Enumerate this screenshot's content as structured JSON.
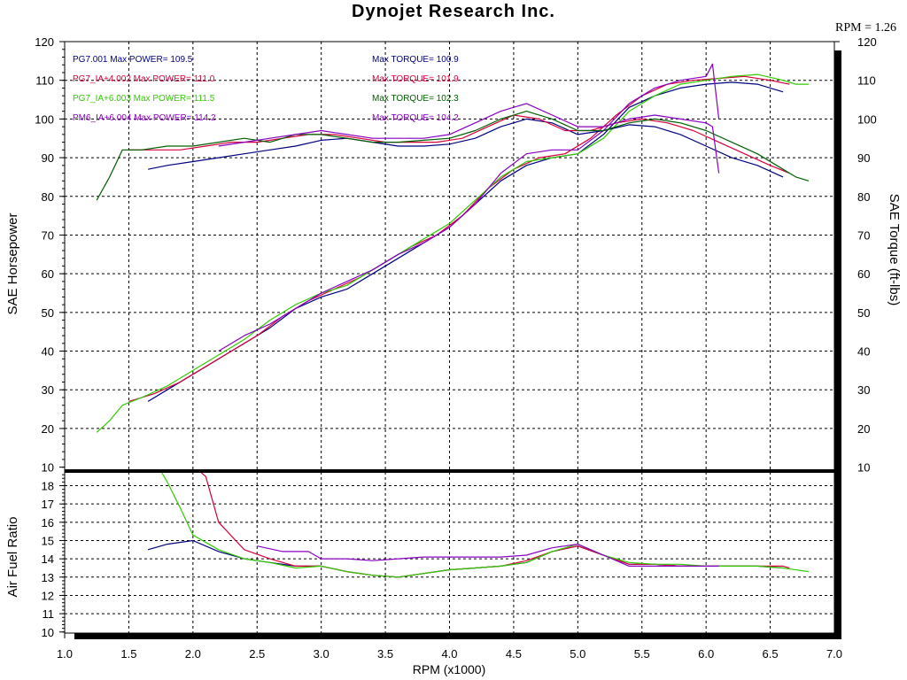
{
  "title": "Dynojet Research Inc.",
  "rpm_factor": "RPM = 1.26",
  "colors": {
    "navy": "#000080",
    "red": "#d8003c",
    "green": "#30cc00",
    "purple": "#8800c0",
    "darkgreen": "#006000",
    "axis": "#000000",
    "grid": "#000000"
  },
  "legend": [
    {
      "run": "PG7.001",
      "power_label": "Max POWER= 109.5",
      "torque_label": "Max TORQUE= 100.9",
      "color": "#000080",
      "torque_color": "#000080"
    },
    {
      "run": "PG7_IA+4.002",
      "power_label": "Max POWER= 111.0",
      "torque_label": "Max TORQUE= 101.9",
      "color": "#d8003c",
      "torque_color": "#d8003c"
    },
    {
      "run": "PG7_IA+6.003",
      "power_label": "Max POWER= 111.5",
      "torque_label": "Max TORQUE= 102.3",
      "color": "#30cc00",
      "torque_color": "#006000"
    },
    {
      "run": "PM6_IA+6.004",
      "power_label": "Max POWER= 114.2",
      "torque_label": "Max TORQUE= 104.2",
      "color": "#8800c0",
      "torque_color": "#8800c0"
    }
  ],
  "chart_data": [
    {
      "type": "line",
      "ylabel": "SAE Horsepower",
      "y2label": "SAE Torque (ft-lbs)",
      "ylim": [
        10,
        120
      ],
      "y_ticks": [
        "10",
        "20",
        "30",
        "40",
        "50",
        "60",
        "70",
        "80",
        "90",
        "100",
        "110",
        "120"
      ],
      "y2_ticks": [
        "10",
        "20",
        "30",
        "40",
        "50",
        "60",
        "70",
        "80",
        "90",
        "100",
        "110",
        "120"
      ],
      "xlim": [
        1.0,
        7.0
      ],
      "grid": true,
      "legend_position": "top-left",
      "series": [
        {
          "name": "PG7.001",
          "measure": "horsepower",
          "color": "#000080",
          "x": [
            1.65,
            1.8,
            2.0,
            2.2,
            2.4,
            2.6,
            2.8,
            3.0,
            3.2,
            3.4,
            3.6,
            3.8,
            4.0,
            4.2,
            4.4,
            4.6,
            4.8,
            5.0,
            5.2,
            5.4,
            5.6,
            5.8,
            6.0,
            6.2,
            6.4,
            6.6
          ],
          "y": [
            27,
            30,
            34,
            38,
            42,
            46,
            51,
            54,
            56,
            60,
            64,
            68,
            72,
            78,
            84,
            88,
            90,
            91,
            96,
            103,
            106,
            108,
            109,
            109.5,
            109,
            107
          ]
        },
        {
          "name": "PG7_IA+4.002",
          "measure": "horsepower",
          "color": "#d8003c",
          "x": [
            1.5,
            1.7,
            1.9,
            2.1,
            2.3,
            2.5,
            2.7,
            2.9,
            3.1,
            3.3,
            3.5,
            3.7,
            3.9,
            4.1,
            4.3,
            4.5,
            4.7,
            4.9,
            5.1,
            5.3,
            5.5,
            5.7,
            5.9,
            6.1,
            6.3,
            6.5,
            6.65
          ],
          "y": [
            27,
            29,
            32,
            36,
            40,
            44,
            49,
            53,
            56,
            59,
            63,
            67,
            70,
            75,
            82,
            87,
            90,
            91,
            95,
            101,
            106,
            109,
            110,
            110.5,
            111,
            110,
            109
          ]
        },
        {
          "name": "PG7_IA+6.003",
          "measure": "horsepower",
          "color": "#30cc00",
          "x": [
            1.25,
            1.35,
            1.45,
            1.6,
            1.8,
            2.0,
            2.2,
            2.4,
            2.6,
            2.8,
            3.0,
            3.2,
            3.4,
            3.6,
            3.8,
            4.0,
            4.2,
            4.4,
            4.6,
            4.8,
            5.0,
            5.2,
            5.4,
            5.6,
            5.8,
            6.0,
            6.2,
            6.4,
            6.6,
            6.7,
            6.8
          ],
          "y": [
            19,
            22,
            26,
            28,
            31,
            35,
            39,
            43,
            48,
            52,
            55,
            57,
            61,
            65,
            69,
            73,
            79,
            85,
            89,
            90,
            91,
            95,
            102,
            106,
            109,
            110,
            111,
            111.5,
            110,
            109,
            109
          ]
        },
        {
          "name": "PM6_IA+6.004",
          "measure": "horsepower",
          "color": "#8800c0",
          "x": [
            2.2,
            2.4,
            2.6,
            2.8,
            3.0,
            3.2,
            3.4,
            3.6,
            3.8,
            4.0,
            4.2,
            4.4,
            4.6,
            4.8,
            5.0,
            5.2,
            5.4,
            5.6,
            5.8,
            6.0,
            6.05,
            6.1
          ],
          "y": [
            40,
            44,
            47,
            51,
            55,
            58,
            61,
            65,
            68,
            72,
            78,
            86,
            91,
            92,
            92,
            97,
            104,
            108,
            110,
            111,
            114.2,
            100
          ]
        },
        {
          "name": "PG7.001",
          "measure": "torque",
          "color": "#000080",
          "x": [
            1.65,
            1.8,
            2.0,
            2.2,
            2.4,
            2.6,
            2.8,
            3.0,
            3.2,
            3.4,
            3.6,
            3.8,
            4.0,
            4.2,
            4.4,
            4.6,
            4.8,
            5.0,
            5.2,
            5.4,
            5.6,
            5.8,
            6.0,
            6.2,
            6.4,
            6.6
          ],
          "y": [
            87,
            88,
            89,
            90,
            91,
            92,
            93,
            94.5,
            95,
            94,
            93,
            93,
            93.5,
            95,
            98,
            100,
            99,
            96,
            97,
            98.5,
            98,
            96,
            93,
            90,
            88,
            85
          ]
        },
        {
          "name": "PG7_IA+4.002",
          "measure": "torque",
          "color": "#d8003c",
          "x": [
            1.5,
            1.7,
            1.9,
            2.1,
            2.3,
            2.5,
            2.7,
            2.9,
            3.1,
            3.3,
            3.5,
            3.7,
            3.9,
            4.1,
            4.3,
            4.5,
            4.7,
            4.9,
            5.1,
            5.3,
            5.5,
            5.7,
            5.9,
            6.1,
            6.3,
            6.5,
            6.65
          ],
          "y": [
            92,
            92,
            92,
            93,
            94,
            94,
            95,
            96,
            96,
            95,
            94,
            94,
            94,
            95,
            98,
            101,
            100,
            97,
            97,
            99,
            100,
            99,
            97,
            94,
            91,
            88,
            86
          ]
        },
        {
          "name": "PG7_IA+6.003",
          "measure": "torque",
          "color": "#006000",
          "x": [
            1.25,
            1.35,
            1.45,
            1.6,
            1.8,
            2.0,
            2.2,
            2.4,
            2.6,
            2.8,
            3.0,
            3.2,
            3.4,
            3.6,
            3.8,
            4.0,
            4.2,
            4.4,
            4.6,
            4.8,
            5.0,
            5.2,
            5.4,
            5.6,
            5.8,
            6.0,
            6.2,
            6.4,
            6.6,
            6.7,
            6.8
          ],
          "y": [
            79,
            85,
            92,
            92,
            93,
            93,
            94,
            95,
            94,
            96,
            96,
            95,
            94,
            94,
            94.5,
            95,
            97,
            100,
            102,
            100,
            97,
            97,
            99,
            100,
            99,
            97,
            94,
            91,
            87,
            85,
            84
          ]
        },
        {
          "name": "PM6_IA+6.004",
          "measure": "torque",
          "color": "#8800c0",
          "x": [
            2.2,
            2.4,
            2.6,
            2.8,
            3.0,
            3.2,
            3.4,
            3.6,
            3.8,
            4.0,
            4.2,
            4.4,
            4.6,
            4.8,
            5.0,
            5.2,
            5.4,
            5.6,
            5.8,
            6.0,
            6.05,
            6.1
          ],
          "y": [
            93,
            94,
            95,
            96,
            97,
            96,
            95,
            95,
            95,
            96,
            99,
            102,
            104,
            101,
            98,
            98,
            100,
            101,
            100,
            99,
            98,
            86
          ]
        }
      ]
    },
    {
      "type": "line",
      "ylabel": "Air Fuel Ratio",
      "xlabel": "RPM (x1000)",
      "ylim": [
        10,
        18.8
      ],
      "y_ticks": [
        "10",
        "11",
        "12",
        "13",
        "14",
        "15",
        "16",
        "17",
        "18"
      ],
      "x_ticks": [
        "1.0",
        "1.5",
        "2.0",
        "2.5",
        "3.0",
        "3.5",
        "4.0",
        "4.5",
        "5.0",
        "5.5",
        "6.0",
        "6.5",
        "7.0"
      ],
      "xlim": [
        1.0,
        7.0
      ],
      "grid": true,
      "series": [
        {
          "name": "PG7.001",
          "color": "#000080",
          "x": [
            1.65,
            1.8,
            2.0,
            2.2,
            2.4,
            2.6,
            2.8,
            3.0,
            3.2,
            3.4,
            3.6,
            3.8,
            4.0,
            4.2,
            4.4,
            4.6,
            4.8,
            5.0,
            5.2,
            5.4,
            5.6,
            5.8,
            6.0,
            6.2,
            6.4,
            6.6
          ],
          "y": [
            14.5,
            14.8,
            15.0,
            14.4,
            14.0,
            13.8,
            13.6,
            13.6,
            13.3,
            13.1,
            13.0,
            13.2,
            13.4,
            13.5,
            13.6,
            13.8,
            14.4,
            14.7,
            14.2,
            13.7,
            13.7,
            13.6,
            13.6,
            13.6,
            13.6,
            13.5
          ]
        },
        {
          "name": "PG7_IA+4.002",
          "color": "#d8003c",
          "x": [
            1.3,
            2.05,
            2.1,
            2.2,
            2.4,
            2.6,
            2.8,
            3.0,
            3.2,
            3.4,
            3.6,
            3.8,
            4.0,
            4.2,
            4.4,
            4.6,
            4.8,
            5.0,
            5.2,
            5.4,
            5.6,
            5.8,
            6.0,
            6.2,
            6.4,
            6.6,
            6.65
          ],
          "y": [
            18.8,
            18.8,
            18.5,
            16.0,
            14.5,
            14.0,
            13.6,
            13.6,
            13.3,
            13.1,
            13.0,
            13.2,
            13.4,
            13.5,
            13.6,
            13.9,
            14.4,
            14.7,
            14.2,
            13.7,
            13.7,
            13.6,
            13.6,
            13.6,
            13.6,
            13.6,
            13.5
          ]
        },
        {
          "name": "PG7_IA+6.003",
          "color": "#30cc00",
          "x": [
            1.25,
            1.75,
            1.8,
            1.9,
            2.0,
            2.2,
            2.4,
            2.6,
            2.8,
            3.0,
            3.2,
            3.4,
            3.6,
            3.8,
            4.0,
            4.2,
            4.4,
            4.6,
            4.8,
            5.0,
            5.2,
            5.4,
            5.6,
            5.8,
            6.0,
            6.2,
            6.4,
            6.6,
            6.8
          ],
          "y": [
            18.8,
            18.8,
            18.2,
            16.8,
            15.3,
            14.5,
            14.0,
            13.8,
            13.5,
            13.6,
            13.3,
            13.1,
            13.0,
            13.2,
            13.4,
            13.5,
            13.6,
            13.8,
            14.4,
            14.8,
            14.2,
            13.8,
            13.7,
            13.7,
            13.6,
            13.6,
            13.6,
            13.5,
            13.3
          ]
        },
        {
          "name": "PM6_IA+6.004",
          "color": "#8800c0",
          "x": [
            2.5,
            2.7,
            2.9,
            3.0,
            3.2,
            3.4,
            3.6,
            3.8,
            4.0,
            4.2,
            4.4,
            4.6,
            4.8,
            5.0,
            5.2,
            5.4,
            5.6,
            5.8,
            6.0,
            6.1
          ],
          "y": [
            14.7,
            14.4,
            14.4,
            14.0,
            14.0,
            13.9,
            14.0,
            14.1,
            14.1,
            14.1,
            14.1,
            14.2,
            14.6,
            14.8,
            14.2,
            13.6,
            13.6,
            13.6,
            13.6,
            13.6
          ]
        }
      ]
    }
  ]
}
